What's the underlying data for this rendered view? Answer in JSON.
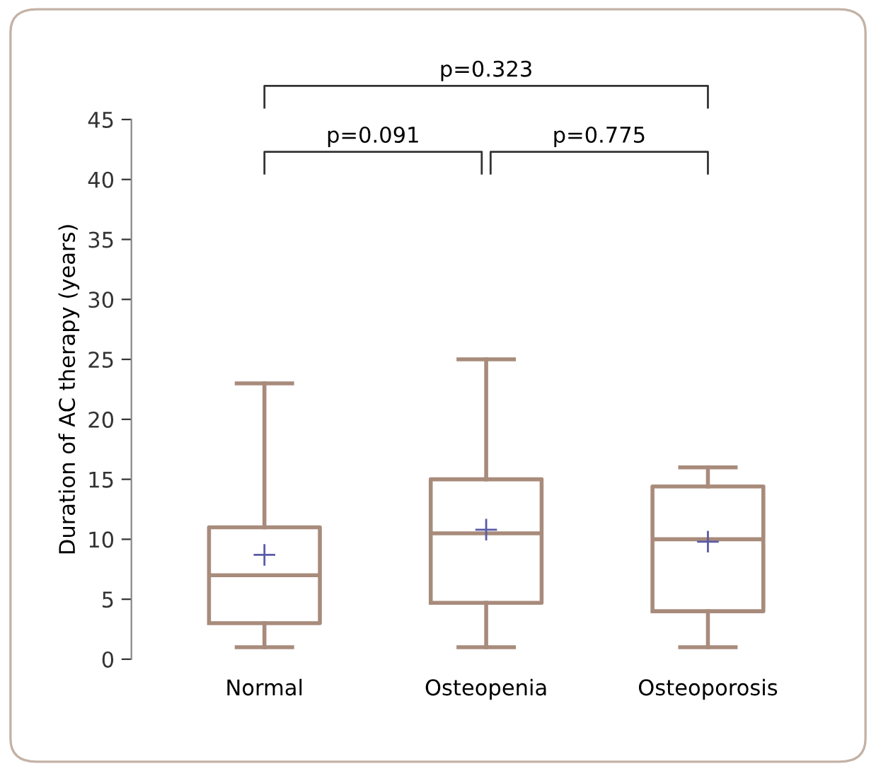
{
  "chart_data": {
    "type": "box",
    "ylabel": "Duration of AC therapy (years)",
    "categories": [
      "Normal",
      "Osteopenia",
      "Osteoporosis"
    ],
    "color": "#a88b7b",
    "boxes": [
      {
        "low": 1,
        "q1": 3,
        "median": 7,
        "q3": 11,
        "high": 23,
        "mean": 8.7
      },
      {
        "low": 1,
        "q1": 4.7,
        "median": 10.5,
        "q3": 15,
        "high": 25,
        "mean": 10.8
      },
      {
        "low": 1,
        "q1": 4,
        "median": 10,
        "q3": 14.4,
        "high": 16,
        "mean": 9.8
      }
    ],
    "ylim": [
      0,
      45
    ],
    "yticks": [
      0,
      5,
      10,
      15,
      20,
      25,
      30,
      35,
      40,
      45
    ],
    "grid": false,
    "annotations": [
      "p=0.091",
      "p=0.775",
      "p=0.323"
    ]
  }
}
